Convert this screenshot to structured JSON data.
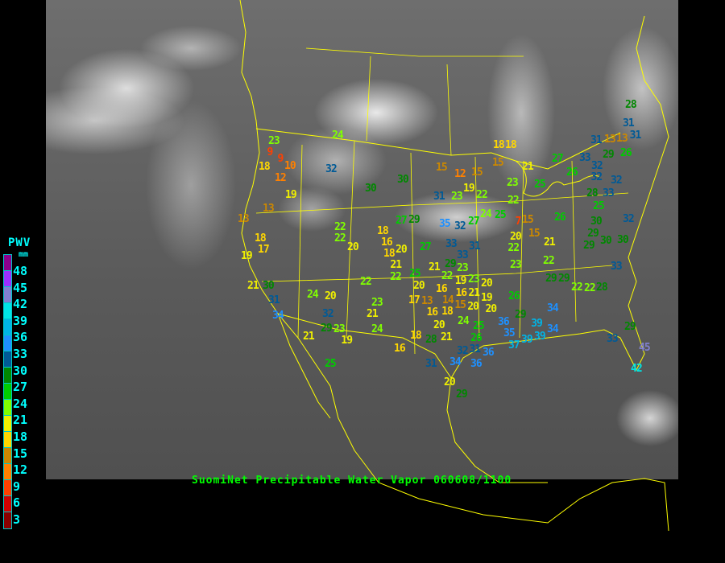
{
  "caption": "SuomiNet Precipitable Water Vapor 060608/1100",
  "legend": {
    "title": "PWV",
    "unit": "mm",
    "labels": [
      "48",
      "45",
      "42",
      "39",
      "36",
      "33",
      "30",
      "27",
      "24",
      "21",
      "18",
      "15",
      "12",
      "9",
      "6",
      "3"
    ],
    "colors": [
      "#8b008b",
      "#9b30ff",
      "#8080d0",
      "#00e6e6",
      "#00b4e6",
      "#1e90ff",
      "#005a96",
      "#008800",
      "#00cc00",
      "#80ff00",
      "#f0f000",
      "#ffd700",
      "#cc8800",
      "#ff8000",
      "#ff4000",
      "#d00000",
      "#8b0000"
    ]
  },
  "map": {
    "border_color": "#ffff00",
    "stations": [
      "23",
      "9",
      "9",
      "10",
      "18",
      "12",
      "19",
      "13",
      "13",
      "18",
      "17",
      "19",
      "21",
      "30",
      "31",
      "34",
      "24",
      "32",
      "30",
      "30",
      "15",
      "12",
      "15",
      "19",
      "31",
      "23",
      "22",
      "18",
      "15",
      "21",
      "27",
      "23",
      "25",
      "22",
      "33",
      "32",
      "26",
      "32",
      "32",
      "28",
      "33",
      "25",
      "32",
      "30",
      "26",
      "15",
      "15",
      "20",
      "7",
      "21",
      "22",
      "23",
      "22",
      "29",
      "22",
      "22",
      "28",
      "33",
      "30",
      "29",
      "29",
      "30",
      "31",
      "13",
      "13",
      "31",
      "29",
      "26",
      "28",
      "31",
      "18",
      "22",
      "20",
      "18",
      "16",
      "18",
      "20",
      "21",
      "22",
      "25",
      "27",
      "29",
      "27",
      "35",
      "32",
      "27",
      "24",
      "25",
      "33",
      "31",
      "33",
      "20",
      "21",
      "29",
      "23",
      "22",
      "19",
      "23",
      "16",
      "14",
      "16",
      "15",
      "21",
      "20",
      "19",
      "20",
      "20",
      "26",
      "29",
      "17",
      "13",
      "16",
      "18",
      "22",
      "23",
      "21",
      "22",
      "20",
      "24",
      "32",
      "29",
      "23",
      "21",
      "19",
      "24",
      "18",
      "20",
      "24",
      "25",
      "26",
      "21",
      "28",
      "16",
      "31",
      "32",
      "36",
      "36",
      "34",
      "31",
      "20",
      "29",
      "25",
      "36",
      "35",
      "37",
      "39",
      "39",
      "39",
      "34",
      "34",
      "29",
      "33",
      "29",
      "45",
      "42"
    ]
  }
}
